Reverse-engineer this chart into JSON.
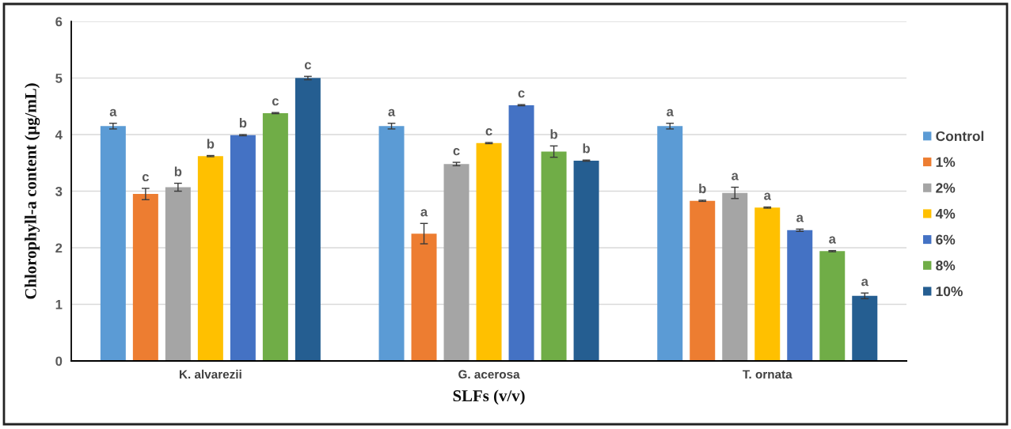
{
  "chart_data": {
    "type": "bar",
    "xlabel": "SLFs (v/v)",
    "ylabel": "Chlorophyll-a content (μg/mL)",
    "categories": [
      "K. alvarezii",
      "G. acerosa",
      "T. ornata"
    ],
    "ylim": [
      0,
      6
    ],
    "yticks": [
      0,
      1,
      2,
      3,
      4,
      5,
      6
    ],
    "grid": "y",
    "legend": "right",
    "series": [
      {
        "name": "Control",
        "color": "#5b9bd5",
        "values": [
          4.15,
          4.15,
          4.15
        ],
        "errors": [
          0.05,
          0.05,
          0.05
        ],
        "value_labels": [
          "a",
          "a",
          "a"
        ]
      },
      {
        "name": "1%",
        "color": "#ed7d31",
        "values": [
          2.95,
          2.25,
          2.83
        ],
        "errors": [
          0.1,
          0.18,
          0.01
        ],
        "value_labels": [
          "c",
          "a",
          "b"
        ]
      },
      {
        "name": "2%",
        "color": "#a5a5a5",
        "values": [
          3.07,
          3.48,
          2.97
        ],
        "errors": [
          0.07,
          0.03,
          0.1
        ],
        "value_labels": [
          "b",
          "c",
          "a"
        ]
      },
      {
        "name": "4%",
        "color": "#ffc000",
        "values": [
          3.62,
          3.85,
          2.71
        ],
        "errors": [
          0.01,
          0.01,
          0.01
        ],
        "value_labels": [
          "b",
          "c",
          "a"
        ]
      },
      {
        "name": "6%",
        "color": "#4472c4",
        "values": [
          3.99,
          4.52,
          2.31
        ],
        "errors": [
          0.01,
          0.01,
          0.02
        ],
        "value_labels": [
          "b",
          "c",
          "a"
        ]
      },
      {
        "name": "8%",
        "color": "#70ad47",
        "values": [
          4.38,
          3.7,
          1.94
        ],
        "errors": [
          0.01,
          0.1,
          0.01
        ],
        "value_labels": [
          "c",
          "b",
          "a"
        ]
      },
      {
        "name": "10%",
        "color": "#255e91",
        "values": [
          5.0,
          3.54,
          1.15
        ],
        "errors": [
          0.03,
          0.01,
          0.05
        ],
        "value_labels": [
          "c",
          "b",
          "a"
        ]
      }
    ]
  }
}
